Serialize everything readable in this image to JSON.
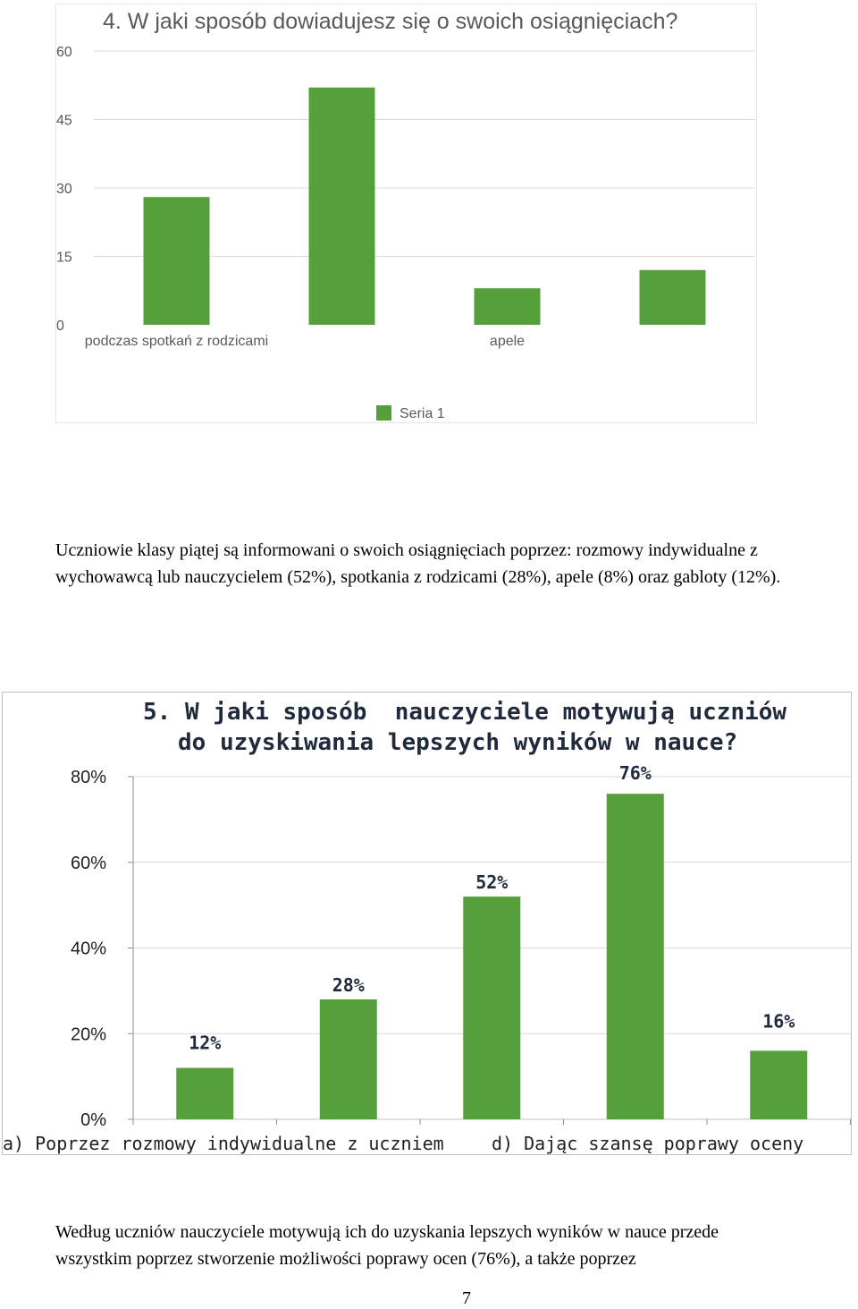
{
  "chart_data": [
    {
      "type": "bar",
      "title": "4. W jaki sposób dowiadujesz się o swoich osiągnięciach?",
      "categories": [
        "podczas spotkań z rodzicami",
        "",
        "apele",
        ""
      ],
      "category_labels_shown": [
        "podczas spotkań z rodzicami",
        "apele"
      ],
      "series": [
        {
          "name": "Seria 1",
          "values": [
            28,
            52,
            8,
            12
          ]
        }
      ],
      "yticks": [
        "0",
        "15",
        "30",
        "45",
        "60"
      ],
      "ylim": [
        0,
        60
      ],
      "grid": true,
      "legend": "bottom",
      "bar_color": "#55a03b"
    },
    {
      "type": "bar",
      "title": "5. W jaki sposób  nauczyciele motywują uczniów do uzyskiwania lepszych wyników w nauce?",
      "title_lines": [
        "5. W jaki sposób  nauczyciele motywują uczniów",
        "do uzyskiwania lepszych wyników w nauce?"
      ],
      "categories": [
        "a) Poprzez rozmowy indywidualne z uczniem",
        "",
        "",
        "d) Dając szansę poprawy oceny",
        ""
      ],
      "series": [
        {
          "values": [
            12,
            28,
            52,
            76,
            16
          ]
        }
      ],
      "data_labels": [
        "12%",
        "28%",
        "52%",
        "76%",
        "16%"
      ],
      "yticks": [
        "0%",
        "20%",
        "40%",
        "60%",
        "80%"
      ],
      "ylim": [
        0,
        80
      ],
      "grid": true,
      "bar_color": "#55a03b"
    }
  ],
  "text": {
    "paragraph1": "Uczniowie klasy piątej są informowani o swoich osiągnięciach poprzez: rozmowy indywidualne z wychowawcą lub nauczycielem (52%), spotkania z rodzicami (28%), apele (8%) oraz gabloty (12%).",
    "paragraph2_line1": "Według uczniów nauczyciele motywują ich do uzyskania lepszych wyników w nauce przede",
    "paragraph2_line2": "wszystkim poprzez stworzenie możliwości poprawy ocen (76%), a także poprzez",
    "page_number": "7"
  }
}
